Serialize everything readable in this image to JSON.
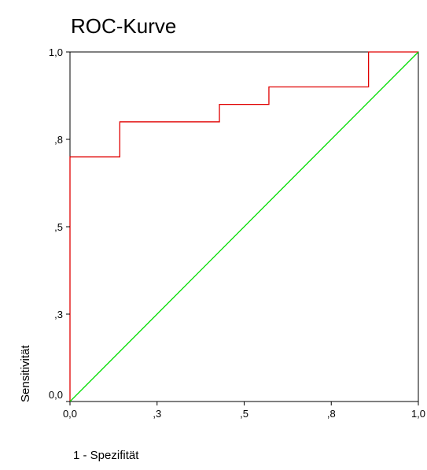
{
  "chart_data": {
    "type": "line",
    "title": "ROC-Kurve",
    "xlabel": "1 - Spezifität",
    "ylabel": "Sensitivität",
    "xlim": [
      0,
      1
    ],
    "ylim": [
      0,
      1
    ],
    "grid": false,
    "x_ticks": [
      {
        "value": 0.0,
        "label": "0,0"
      },
      {
        "value": 0.25,
        "label": ",3"
      },
      {
        "value": 0.5,
        "label": ",5"
      },
      {
        "value": 0.75,
        "label": ",8"
      },
      {
        "value": 1.0,
        "label": "1,0"
      }
    ],
    "y_ticks": [
      {
        "value": 0.0,
        "label": "0,0"
      },
      {
        "value": 0.25,
        "label": ",3"
      },
      {
        "value": 0.5,
        "label": ",5"
      },
      {
        "value": 0.75,
        "label": ",8"
      },
      {
        "value": 1.0,
        "label": "1,0"
      }
    ],
    "series": [
      {
        "color": "#e00000",
        "x": [
          0.0,
          0.0,
          0.143,
          0.143,
          0.429,
          0.429,
          0.571,
          0.571,
          0.857,
          0.857,
          1.0
        ],
        "y": [
          0.0,
          0.7,
          0.7,
          0.8,
          0.8,
          0.85,
          0.85,
          0.9,
          0.9,
          1.0,
          1.0
        ]
      },
      {
        "color": "#00dd00",
        "x": [
          0.0,
          1.0
        ],
        "y": [
          0.0,
          1.0
        ]
      }
    ]
  }
}
